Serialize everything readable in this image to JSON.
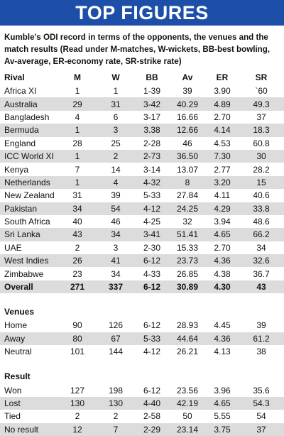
{
  "title": "TOP FIGURES",
  "intro": "Kumble's ODI record in terms of the opponents, the venues and the match results (Read under M-matches, W-wickets, BB-best bowling, Av-average, ER-economy rate, SR-strike rate)",
  "columns": [
    "Rival",
    "M",
    "W",
    "BB",
    "Av",
    "ER",
    "SR"
  ],
  "rivals": [
    [
      "Africa XI",
      "1",
      "1",
      "1-39",
      "39",
      "3.90",
      "`60"
    ],
    [
      "Australia",
      "29",
      "31",
      "3-42",
      "40.29",
      "4.89",
      "49.3"
    ],
    [
      "Bangladesh",
      "4",
      "6",
      "3-17",
      "16.66",
      "2.70",
      "37"
    ],
    [
      "Bermuda",
      "1",
      "3",
      "3.38",
      "12.66",
      "4.14",
      "18.3"
    ],
    [
      "England",
      "28",
      "25",
      "2-28",
      "46",
      "4.53",
      "60.8"
    ],
    [
      "ICC World XI",
      "1",
      "2",
      "2-73",
      "36.50",
      "7.30",
      "30"
    ],
    [
      "Kenya",
      "7",
      "14",
      "3-14",
      "13.07",
      "2.77",
      "28.2"
    ],
    [
      "Netherlands",
      "1",
      "4",
      "4-32",
      "8",
      "3.20",
      "15"
    ],
    [
      "New Zealand",
      "31",
      "39",
      "5-33",
      "27.84",
      "4.11",
      "40.6"
    ],
    [
      "Pakistan",
      "34",
      "54",
      "4-12",
      "24.25",
      "4.29",
      "33.8"
    ],
    [
      "South Africa",
      "40",
      "46",
      "4-25",
      "32",
      "3.94",
      "48.6"
    ],
    [
      "Sri Lanka",
      "43",
      "34",
      "3-41",
      "51.41",
      "4.65",
      "66.2"
    ],
    [
      "UAE",
      "2",
      "3",
      "2-30",
      "15.33",
      "2.70",
      "34"
    ],
    [
      "West Indies",
      "26",
      "41",
      "6-12",
      "23.73",
      "4.36",
      "32.6"
    ],
    [
      "Zimbabwe",
      "23",
      "34",
      "4-33",
      "26.85",
      "4.38",
      "36.7"
    ],
    [
      "Overall",
      "271",
      "337",
      "6-12",
      "30.89",
      "4.30",
      "43"
    ]
  ],
  "venues_label": "Venues",
  "venues": [
    [
      "Home",
      "90",
      "126",
      "6-12",
      "28.93",
      "4.45",
      "39"
    ],
    [
      "Away",
      "80",
      "67",
      "5-33",
      "44.64",
      "4.36",
      "61.2"
    ],
    [
      "Neutral",
      "101",
      "144",
      "4-12",
      "26.21",
      "4.13",
      "38"
    ]
  ],
  "result_label": "Result",
  "results": [
    [
      "Won",
      "127",
      "198",
      "6-12",
      "23.56",
      "3.96",
      "35.6"
    ],
    [
      "Lost",
      "130",
      "130",
      "4-40",
      "42.19",
      "4.65",
      "54.3"
    ],
    [
      "Tied",
      "2",
      "2",
      "2-58",
      "50",
      "5.55",
      "54"
    ],
    [
      "No result",
      "12",
      "7",
      "2-29",
      "23.14",
      "3.75",
      "37"
    ]
  ],
  "colors": {
    "header_bg": "#1d4fa8",
    "alt_row": "#dcdcdc"
  }
}
